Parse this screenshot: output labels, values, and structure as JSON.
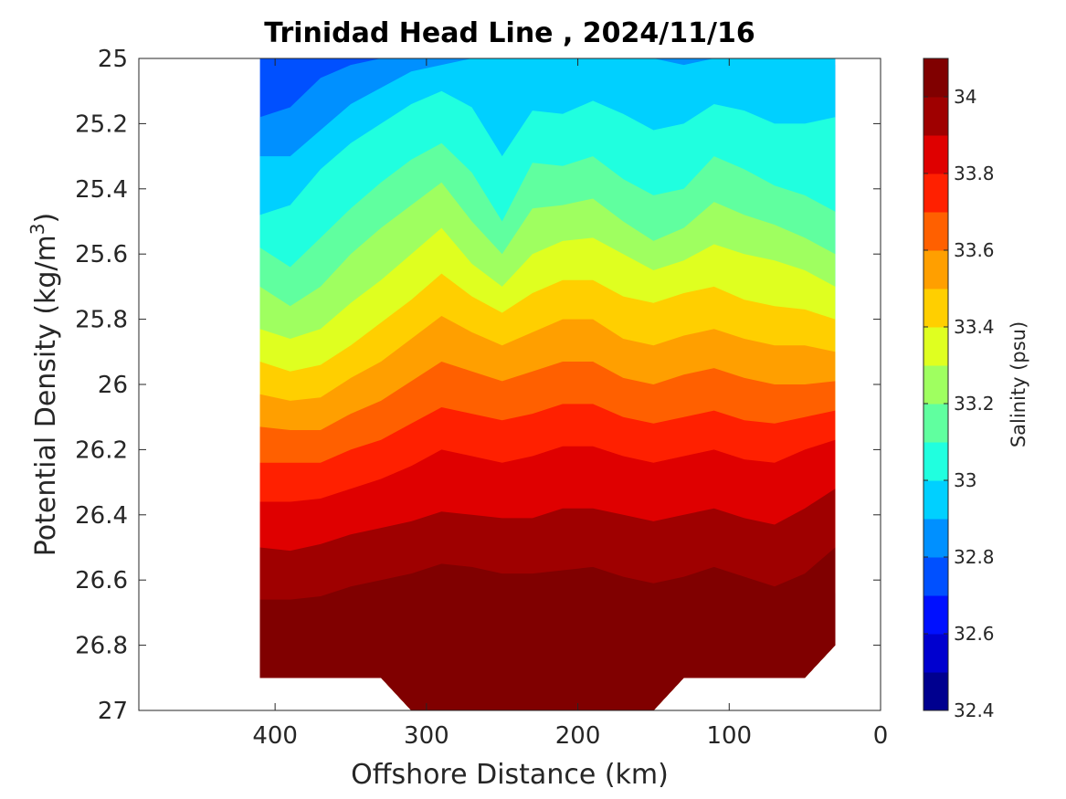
{
  "chart_data": {
    "type": "contour",
    "title": "Trinidad Head Line , 2024/11/16",
    "xlabel": "Offshore Distance (km)",
    "ylabel_main": "Potential Density (kg/m",
    "ylabel_sup": "3",
    "ylabel_close": ")",
    "xlim": [
      490,
      0
    ],
    "ylim": [
      25,
      27
    ],
    "x_reversed": true,
    "y_reversed": true,
    "x_ticks": [
      400,
      300,
      200,
      100,
      0
    ],
    "x_tick_labels": [
      "400",
      "300",
      "200",
      "100",
      "0"
    ],
    "y_ticks": [
      25,
      25.2,
      25.4,
      25.6,
      25.8,
      26,
      26.2,
      26.4,
      26.6,
      26.8,
      27
    ],
    "y_tick_labels": [
      "25",
      "25.2",
      "25.4",
      "25.6",
      "25.8",
      "26",
      "26.2",
      "26.4",
      "26.6",
      "26.8",
      "27"
    ],
    "colorbar": {
      "label": "Salinity (psu)",
      "range": [
        32.4,
        34.1
      ],
      "level_step": 0.1,
      "ticks": [
        32.4,
        32.6,
        32.8,
        33,
        33.2,
        33.4,
        33.6,
        33.8,
        34
      ],
      "tick_labels": [
        "32.4",
        "32.6",
        "32.8",
        "33",
        "33.2",
        "33.4",
        "33.6",
        "33.8",
        "34"
      ],
      "colors": [
        "#00008f",
        "#0000cf",
        "#0010ff",
        "#0050ff",
        "#0090ff",
        "#00d0ff",
        "#20ffdf",
        "#60ff9f",
        "#9fff60",
        "#dfff20",
        "#ffcf00",
        "#ff9f00",
        "#ff6000",
        "#ff2000",
        "#df0000",
        "#9f0000",
        "#800000"
      ]
    },
    "distance_km": [
      410,
      390,
      370,
      350,
      330,
      310,
      290,
      270,
      250,
      230,
      210,
      190,
      170,
      150,
      130,
      110,
      90,
      70,
      50,
      30
    ],
    "contour_levels": [
      32.8,
      32.9,
      33.0,
      33.1,
      33.2,
      33.3,
      33.4,
      33.5,
      33.6,
      33.7,
      33.8,
      33.9,
      34.0
    ],
    "isohaline_density": [
      [
        25.18,
        25.15,
        25.06,
        25.02,
        25.0,
        25.0,
        25.0,
        25.0,
        25.1,
        25.0,
        25.0,
        25.0,
        25.0,
        25.0,
        25.0,
        25.0,
        25.0,
        25.0,
        25.0,
        25.02
      ],
      [
        25.3,
        25.3,
        25.22,
        25.14,
        25.09,
        25.04,
        25.02,
        25.0,
        25.0,
        25.0,
        25.0,
        25.0,
        25.0,
        25.0,
        25.02,
        25.0,
        25.0,
        25.0,
        25.0,
        25.0
      ],
      [
        25.48,
        25.45,
        25.34,
        25.26,
        25.2,
        25.14,
        25.1,
        25.15,
        25.3,
        25.16,
        25.17,
        25.13,
        25.17,
        25.22,
        25.2,
        25.14,
        25.16,
        25.2,
        25.2,
        25.18
      ],
      [
        25.58,
        25.64,
        25.55,
        25.46,
        25.38,
        25.31,
        25.26,
        25.35,
        25.5,
        25.32,
        25.33,
        25.3,
        25.37,
        25.42,
        25.4,
        25.3,
        25.34,
        25.39,
        25.42,
        25.47
      ],
      [
        25.7,
        25.76,
        25.7,
        25.6,
        25.52,
        25.45,
        25.38,
        25.5,
        25.6,
        25.46,
        25.45,
        25.43,
        25.5,
        25.56,
        25.52,
        25.44,
        25.48,
        25.51,
        25.55,
        25.6
      ],
      [
        25.83,
        25.86,
        25.83,
        25.75,
        25.68,
        25.6,
        25.52,
        25.63,
        25.7,
        25.6,
        25.56,
        25.55,
        25.6,
        25.65,
        25.62,
        25.57,
        25.6,
        25.62,
        25.65,
        25.7
      ],
      [
        25.93,
        25.96,
        25.94,
        25.88,
        25.81,
        25.74,
        25.66,
        25.73,
        25.78,
        25.72,
        25.68,
        25.68,
        25.73,
        25.75,
        25.72,
        25.7,
        25.74,
        25.76,
        25.77,
        25.8
      ],
      [
        26.03,
        26.05,
        26.04,
        25.98,
        25.93,
        25.86,
        25.79,
        25.84,
        25.88,
        25.84,
        25.8,
        25.8,
        25.86,
        25.88,
        25.85,
        25.83,
        25.86,
        25.88,
        25.88,
        25.9
      ],
      [
        26.13,
        26.14,
        26.14,
        26.09,
        26.05,
        25.99,
        25.93,
        25.96,
        25.99,
        25.96,
        25.93,
        25.93,
        25.98,
        26.0,
        25.97,
        25.95,
        25.98,
        26.0,
        26.0,
        25.99
      ],
      [
        26.24,
        26.24,
        26.24,
        26.2,
        26.17,
        26.12,
        26.07,
        26.09,
        26.11,
        26.09,
        26.06,
        26.06,
        26.1,
        26.12,
        26.1,
        26.08,
        26.11,
        26.12,
        26.1,
        26.08
      ],
      [
        26.36,
        26.36,
        26.35,
        26.32,
        26.29,
        26.25,
        26.2,
        26.22,
        26.24,
        26.22,
        26.19,
        26.19,
        26.22,
        26.24,
        26.22,
        26.2,
        26.23,
        26.24,
        26.2,
        26.17
      ],
      [
        26.5,
        26.51,
        26.49,
        26.46,
        26.44,
        26.42,
        26.39,
        26.4,
        26.41,
        26.41,
        26.38,
        26.38,
        26.4,
        26.42,
        26.4,
        26.38,
        26.41,
        26.43,
        26.38,
        26.32
      ],
      [
        26.66,
        26.66,
        26.65,
        26.62,
        26.6,
        26.58,
        26.55,
        26.56,
        26.58,
        26.58,
        26.57,
        26.56,
        26.59,
        26.61,
        26.59,
        26.56,
        26.59,
        26.62,
        26.58,
        26.5
      ]
    ],
    "deepest_level_note": "",
    "bottom_edge_density": [
      26.9,
      26.9,
      26.9,
      26.9,
      26.9,
      27.0,
      27.0,
      27.0,
      27.0,
      27.0,
      27.0,
      27.0,
      27.0,
      27.0,
      26.9,
      26.9,
      26.9,
      26.9,
      26.9,
      26.8
    ]
  }
}
